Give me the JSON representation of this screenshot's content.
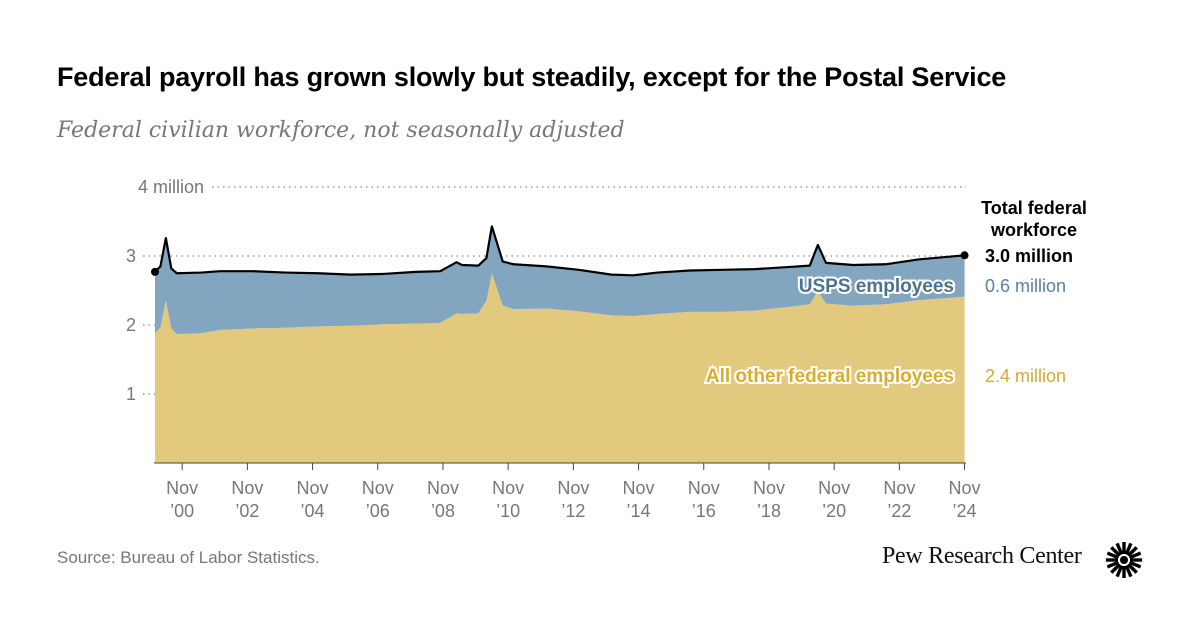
{
  "title": "Federal payroll has grown slowly but steadily, except for the Postal Service",
  "subtitle": "Federal civilian workforce, not seasonally adjusted",
  "source": "Source: Bureau of Labor Statistics.",
  "brand": "Pew Research Center",
  "chart_data": {
    "type": "area",
    "stacked": true,
    "ylim": [
      0,
      4
    ],
    "grid": "dotted horizontal",
    "y_ticks": [
      {
        "value": 4,
        "label": "4 million"
      },
      {
        "value": 3,
        "label": "3"
      },
      {
        "value": 2,
        "label": "2"
      },
      {
        "value": 1,
        "label": "1"
      }
    ],
    "x_ticks": [
      {
        "date": "2000-11",
        "line1": "Nov",
        "line2": "’00"
      },
      {
        "date": "2002-11",
        "line1": "Nov",
        "line2": "’02"
      },
      {
        "date": "2004-11",
        "line1": "Nov",
        "line2": "’04"
      },
      {
        "date": "2006-11",
        "line1": "Nov",
        "line2": "’06"
      },
      {
        "date": "2008-11",
        "line1": "Nov",
        "line2": "’08"
      },
      {
        "date": "2010-11",
        "line1": "Nov",
        "line2": "’10"
      },
      {
        "date": "2012-11",
        "line1": "Nov",
        "line2": "’12"
      },
      {
        "date": "2014-11",
        "line1": "Nov",
        "line2": "’14"
      },
      {
        "date": "2016-11",
        "line1": "Nov",
        "line2": "’16"
      },
      {
        "date": "2018-11",
        "line1": "Nov",
        "line2": "’18"
      },
      {
        "date": "2020-11",
        "line1": "Nov",
        "line2": "’20"
      },
      {
        "date": "2022-11",
        "line1": "Nov",
        "line2": "’22"
      },
      {
        "date": "2024-11",
        "line1": "Nov",
        "line2": "’24"
      }
    ],
    "units": "millions",
    "series": [
      {
        "name": "USPS employees",
        "color": "#82a6bf",
        "end_label": "0.6 million"
      },
      {
        "name": "All other federal employees",
        "color": "#e3c97e",
        "end_label": "2.4 million"
      }
    ],
    "total": {
      "label_line1": "Total federal",
      "label_line2": "workforce",
      "end_label": "3.0 million",
      "color": "#000000"
    },
    "points": [
      {
        "date": "2000-01",
        "total": 2.77,
        "other": 1.88
      },
      {
        "date": "2000-03",
        "total": 2.85,
        "other": 1.97
      },
      {
        "date": "2000-05",
        "total": 3.26,
        "other": 2.36
      },
      {
        "date": "2000-07",
        "total": 2.82,
        "other": 1.95
      },
      {
        "date": "2000-09",
        "total": 2.75,
        "other": 1.87
      },
      {
        "date": "2001-06",
        "total": 2.76,
        "other": 1.88
      },
      {
        "date": "2002-01",
        "total": 2.78,
        "other": 1.93
      },
      {
        "date": "2003-01",
        "total": 2.78,
        "other": 1.95
      },
      {
        "date": "2004-01",
        "total": 2.76,
        "other": 1.96
      },
      {
        "date": "2005-01",
        "total": 2.75,
        "other": 1.98
      },
      {
        "date": "2006-01",
        "total": 2.73,
        "other": 1.99
      },
      {
        "date": "2007-01",
        "total": 2.74,
        "other": 2.01
      },
      {
        "date": "2008-01",
        "total": 2.77,
        "other": 2.02
      },
      {
        "date": "2008-10",
        "total": 2.78,
        "other": 2.03
      },
      {
        "date": "2009-04",
        "total": 2.91,
        "other": 2.17
      },
      {
        "date": "2009-06",
        "total": 2.87,
        "other": 2.16
      },
      {
        "date": "2009-12",
        "total": 2.86,
        "other": 2.17
      },
      {
        "date": "2010-03",
        "total": 2.97,
        "other": 2.35
      },
      {
        "date": "2010-05",
        "total": 3.43,
        "other": 2.75
      },
      {
        "date": "2010-09",
        "total": 2.92,
        "other": 2.28
      },
      {
        "date": "2011-01",
        "total": 2.88,
        "other": 2.23
      },
      {
        "date": "2012-01",
        "total": 2.85,
        "other": 2.24
      },
      {
        "date": "2013-01",
        "total": 2.8,
        "other": 2.2
      },
      {
        "date": "2014-01",
        "total": 2.73,
        "other": 2.14
      },
      {
        "date": "2014-09",
        "total": 2.72,
        "other": 2.13
      },
      {
        "date": "2015-06",
        "total": 2.76,
        "other": 2.16
      },
      {
        "date": "2016-06",
        "total": 2.79,
        "other": 2.19
      },
      {
        "date": "2017-06",
        "total": 2.8,
        "other": 2.19
      },
      {
        "date": "2018-06",
        "total": 2.81,
        "other": 2.21
      },
      {
        "date": "2019-06",
        "total": 2.84,
        "other": 2.26
      },
      {
        "date": "2020-02",
        "total": 2.86,
        "other": 2.3
      },
      {
        "date": "2020-05",
        "total": 3.16,
        "other": 2.49
      },
      {
        "date": "2020-08",
        "total": 2.9,
        "other": 2.31
      },
      {
        "date": "2021-06",
        "total": 2.87,
        "other": 2.28
      },
      {
        "date": "2022-06",
        "total": 2.88,
        "other": 2.3
      },
      {
        "date": "2023-06",
        "total": 2.95,
        "other": 2.36
      },
      {
        "date": "2024-11",
        "total": 3.01,
        "other": 2.41
      }
    ]
  }
}
